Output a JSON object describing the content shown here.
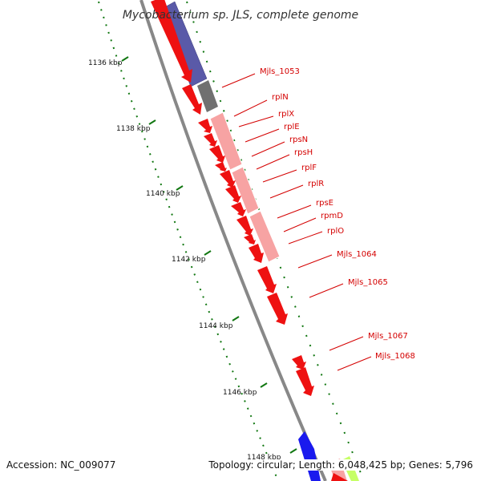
{
  "title": "Mycobacterium sp. JLS, complete genome",
  "footer": {
    "accession": "Accession: NC_009077",
    "topology": "Topology: circular; Length: 6,048,425 bp; Genes: 5,796"
  },
  "colors": {
    "gene_forward": "#ee1111",
    "gene_highlight": "#f7a3a3",
    "gene_purple": "#5a5aa8",
    "gene_gray": "#707070",
    "gene_blue": "#1a1aee",
    "gene_lime": "#c6ff66",
    "label_red": "#d40000",
    "tick_green": "#117711",
    "backbone": "#888888"
  },
  "scale_ticks": [
    {
      "label": "1136 kbp"
    },
    {
      "label": "1138 kbp"
    },
    {
      "label": "1140 kbp"
    },
    {
      "label": "1142 kbp"
    },
    {
      "label": "1144 kbp"
    },
    {
      "label": "1146 kbp"
    },
    {
      "label": "1148 kbp"
    }
  ],
  "gene_labels": [
    "Mjls_1053",
    "rplN",
    "rplX",
    "rplE",
    "rpsN",
    "rpsH",
    "rplF",
    "rplR",
    "rpsE",
    "rpmD",
    "rplO",
    "Mjls_1064",
    "Mjls_1065",
    "Mjls_1067",
    "Mjls_1068"
  ]
}
